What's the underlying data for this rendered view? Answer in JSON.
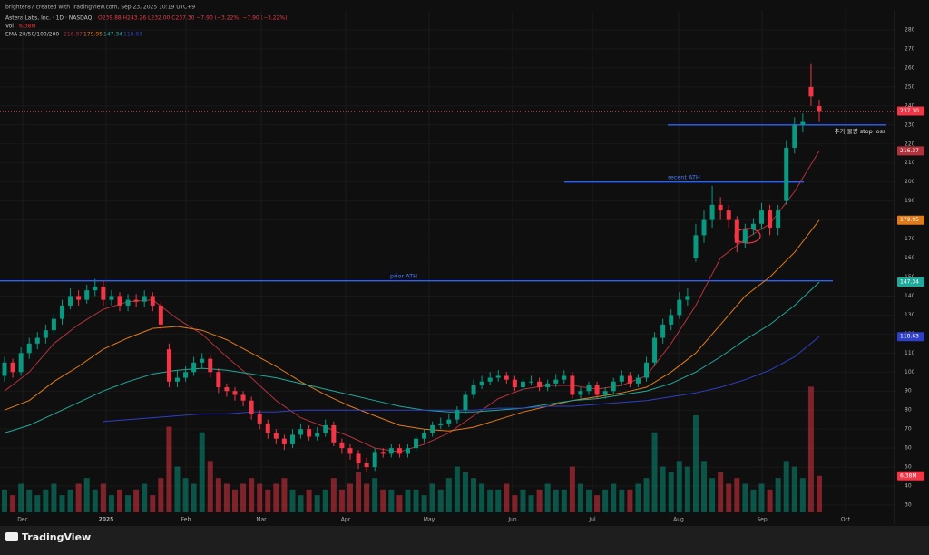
{
  "header": {
    "creator": "brighter87 created with TradingView.com, Sep 23, 2025 10:19 UTC+9",
    "symbol": "Astera Labs, Inc. · 1D · NASDAQ",
    "ohlc": "O239.88 H243.26 L232.00 C237.30 −7.90 (−3.22%) −7.90 (−3.22%)",
    "volume_title": "Vol",
    "volume_value": "6.38M",
    "ema_title": "EMA 20/50/100/200"
  },
  "footer": "TradingView",
  "chart_data": {
    "type": "candlestick",
    "months": [
      "Dec",
      "2025",
      "Feb",
      "Mar",
      "Apr",
      "May",
      "Jun",
      "Jul",
      "Aug",
      "Sep",
      "Oct"
    ],
    "open": [
      98,
      105,
      100,
      110,
      115,
      118,
      122,
      128,
      135,
      140,
      138,
      143,
      145,
      138,
      140,
      135,
      138,
      137,
      140,
      135,
      112,
      95,
      97,
      100,
      105,
      107,
      100,
      92,
      90,
      88,
      85,
      78,
      73,
      68,
      65,
      62,
      67,
      70,
      66,
      68,
      72,
      63,
      60,
      57,
      52,
      50,
      58,
      57,
      60,
      57,
      60,
      65,
      68,
      72,
      73,
      75,
      80,
      88,
      93,
      95,
      97,
      98,
      96,
      92,
      95,
      95,
      92,
      94,
      96,
      98,
      88,
      90,
      93,
      88,
      90,
      95,
      98,
      94,
      97,
      105,
      118,
      125,
      130,
      138,
      160,
      172,
      180,
      188,
      185,
      180,
      168,
      175,
      178,
      185,
      176,
      190,
      218,
      230,
      250,
      239.88
    ],
    "high": [
      108,
      107,
      113,
      118,
      121,
      125,
      131,
      138,
      144,
      143,
      146,
      149,
      148,
      143,
      142,
      141,
      141,
      143,
      142,
      137,
      115,
      101,
      103,
      108,
      110,
      109,
      102,
      94,
      92,
      90,
      87,
      80,
      75,
      70,
      67,
      70,
      73,
      72,
      71,
      75,
      74,
      65,
      62,
      59,
      55,
      60,
      60,
      62,
      62,
      62,
      67,
      70,
      74,
      76,
      78,
      82,
      90,
      96,
      98,
      100,
      101,
      100,
      98,
      97,
      98,
      97,
      96,
      99,
      101,
      100,
      92,
      95,
      95,
      92,
      97,
      101,
      100,
      99,
      108,
      121,
      128,
      133,
      142,
      144,
      178,
      185,
      198,
      192,
      188,
      182,
      178,
      181,
      189,
      188,
      188,
      222,
      234,
      236,
      262,
      243.26
    ],
    "low": [
      95,
      97,
      98,
      107,
      112,
      115,
      120,
      125,
      133,
      135,
      136,
      140,
      135,
      135,
      132,
      132,
      134,
      134,
      132,
      122,
      92,
      92,
      95,
      98,
      102,
      97,
      89,
      87,
      85,
      82,
      75,
      70,
      65,
      62,
      59,
      60,
      65,
      64,
      64,
      66,
      61,
      57,
      54,
      49,
      47,
      48,
      55,
      55,
      55,
      55,
      58,
      63,
      66,
      70,
      71,
      73,
      78,
      86,
      91,
      93,
      95,
      94,
      90,
      90,
      93,
      90,
      90,
      92,
      94,
      86,
      86,
      88,
      86,
      86,
      88,
      93,
      92,
      92,
      95,
      103,
      115,
      122,
      128,
      135,
      158,
      168,
      176,
      180,
      176,
      163,
      165,
      172,
      175,
      172,
      172,
      188,
      215,
      226,
      240,
      232
    ],
    "close": [
      105,
      100,
      110,
      115,
      118,
      122,
      128,
      135,
      140,
      138,
      143,
      145,
      138,
      140,
      135,
      138,
      137,
      140,
      135,
      125,
      95,
      97,
      100,
      105,
      107,
      100,
      92,
      90,
      88,
      85,
      78,
      73,
      68,
      65,
      62,
      67,
      70,
      66,
      68,
      72,
      63,
      60,
      57,
      52,
      50,
      58,
      57,
      60,
      57,
      60,
      65,
      68,
      72,
      73,
      75,
      80,
      88,
      93,
      95,
      97,
      98,
      96,
      92,
      95,
      95,
      92,
      94,
      96,
      98,
      88,
      90,
      93,
      88,
      90,
      95,
      98,
      94,
      97,
      105,
      118,
      125,
      130,
      138,
      140,
      172,
      180,
      188,
      185,
      180,
      168,
      175,
      178,
      185,
      176,
      185,
      218,
      230,
      232,
      245,
      237.3
    ],
    "volume": [
      4,
      3,
      5,
      4,
      3,
      4,
      5,
      3,
      4,
      5,
      6,
      4,
      5,
      3,
      4,
      3,
      4,
      5,
      3,
      6,
      15,
      8,
      6,
      5,
      14,
      9,
      6,
      5,
      4,
      5,
      6,
      5,
      4,
      5,
      6,
      4,
      3,
      4,
      3,
      4,
      6,
      4,
      5,
      7,
      5,
      6,
      4,
      4,
      3,
      4,
      4,
      3,
      5,
      4,
      6,
      8,
      7,
      6,
      5,
      4,
      4,
      5,
      3,
      4,
      3,
      4,
      5,
      4,
      4,
      8,
      5,
      4,
      3,
      4,
      5,
      4,
      4,
      5,
      6,
      14,
      8,
      7,
      9,
      8,
      17,
      9,
      6,
      7,
      5,
      6,
      5,
      4,
      5,
      4,
      6,
      9,
      8,
      6,
      22,
      6.38
    ],
    "volume_label": "6.38M",
    "close_label": "237.30",
    "colors": {
      "up": "#089981",
      "down": "#f23645"
    },
    "ylim": [
      30,
      280
    ],
    "yticks": [
      30,
      40,
      50,
      60,
      70,
      80,
      90,
      100,
      110,
      120,
      130,
      140,
      150,
      160,
      170,
      180,
      190,
      200,
      210,
      220,
      230,
      240,
      250,
      260,
      270,
      280
    ],
    "series": [
      {
        "color": "#b2323c",
        "values": [
          90,
          100,
          115,
          125,
          133,
          137,
          138,
          128,
          120,
          108,
          97,
          85,
          76,
          71,
          66,
          60,
          58,
          62,
          68,
          77,
          86,
          91,
          93,
          93,
          91,
          93,
          98,
          115,
          135,
          160,
          170,
          178,
          195,
          216.37
        ]
      },
      {
        "color": "#e07b1a",
        "values": [
          80,
          85,
          95,
          103,
          112,
          118,
          123,
          124,
          122,
          117,
          110,
          103,
          95,
          88,
          82,
          77,
          72,
          70,
          69,
          71,
          75,
          79,
          82,
          85,
          87,
          89,
          92,
          100,
          110,
          125,
          140,
          150,
          163,
          179.95
        ]
      },
      {
        "color": "#1fa99a",
        "values": [
          68,
          72,
          78,
          84,
          90,
          95,
          99,
          101,
          102,
          101,
          99,
          97,
          94,
          91,
          88,
          85,
          82,
          80,
          79,
          79,
          80,
          81,
          83,
          85,
          86,
          88,
          90,
          94,
          100,
          108,
          117,
          125,
          135,
          147.34
        ]
      },
      {
        "color": "#2f3fc8",
        "values": [
          null,
          null,
          null,
          null,
          74,
          75,
          76,
          77,
          78,
          78,
          79,
          79,
          80,
          80,
          80,
          80,
          80,
          80,
          80,
          80,
          81,
          81,
          82,
          82,
          83,
          84,
          85,
          87,
          89,
          92,
          96,
          101,
          108,
          118.63
        ]
      }
    ],
    "annotations": [
      {
        "label": "prior ATH",
        "value": 148
      },
      {
        "label": "recent ATH",
        "value": 200
      },
      {
        "label": "추가 물량 stop loss",
        "value": 230
      }
    ]
  }
}
